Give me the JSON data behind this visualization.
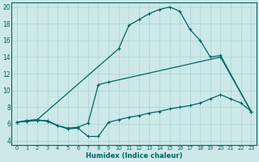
{
  "xlabel": "Humidex (Indice chaleur)",
  "bg_color": "#cce8e8",
  "line_color": "#006666",
  "grid_color": "#aad4d4",
  "xlim": [
    -0.5,
    23.5
  ],
  "ylim": [
    3.5,
    20.5
  ],
  "xticks": [
    0,
    1,
    2,
    3,
    4,
    5,
    6,
    7,
    8,
    9,
    10,
    11,
    12,
    13,
    14,
    15,
    16,
    17,
    18,
    19,
    20,
    21,
    22,
    23
  ],
  "yticks": [
    4,
    6,
    8,
    10,
    12,
    14,
    16,
    18,
    20
  ],
  "line1_x": [
    0,
    1,
    2,
    10,
    11,
    12,
    13,
    14,
    15,
    16,
    17,
    18,
    19,
    20,
    23
  ],
  "line1_y": [
    6.2,
    6.4,
    6.5,
    15.0,
    17.8,
    18.5,
    19.2,
    19.7,
    20.0,
    19.5,
    17.3,
    16.0,
    14.0,
    14.2,
    7.5
  ],
  "line2_x": [
    0,
    1,
    2,
    3,
    4,
    5,
    6,
    7,
    8,
    9,
    20,
    23
  ],
  "line2_y": [
    6.2,
    6.4,
    6.5,
    6.3,
    5.8,
    5.5,
    5.6,
    6.1,
    10.7,
    11.0,
    14.0,
    7.5
  ],
  "line3_x": [
    0,
    1,
    2,
    3,
    4,
    5,
    6,
    7,
    8,
    9,
    10,
    11,
    12,
    13,
    14,
    15,
    16,
    17,
    18,
    19,
    20,
    21,
    22,
    23
  ],
  "line3_y": [
    6.2,
    6.3,
    6.4,
    6.4,
    5.8,
    5.4,
    5.5,
    4.5,
    4.5,
    6.2,
    6.5,
    6.8,
    7.0,
    7.3,
    7.5,
    7.8,
    8.0,
    8.2,
    8.5,
    9.0,
    9.5,
    9.0,
    8.5,
    7.5
  ]
}
